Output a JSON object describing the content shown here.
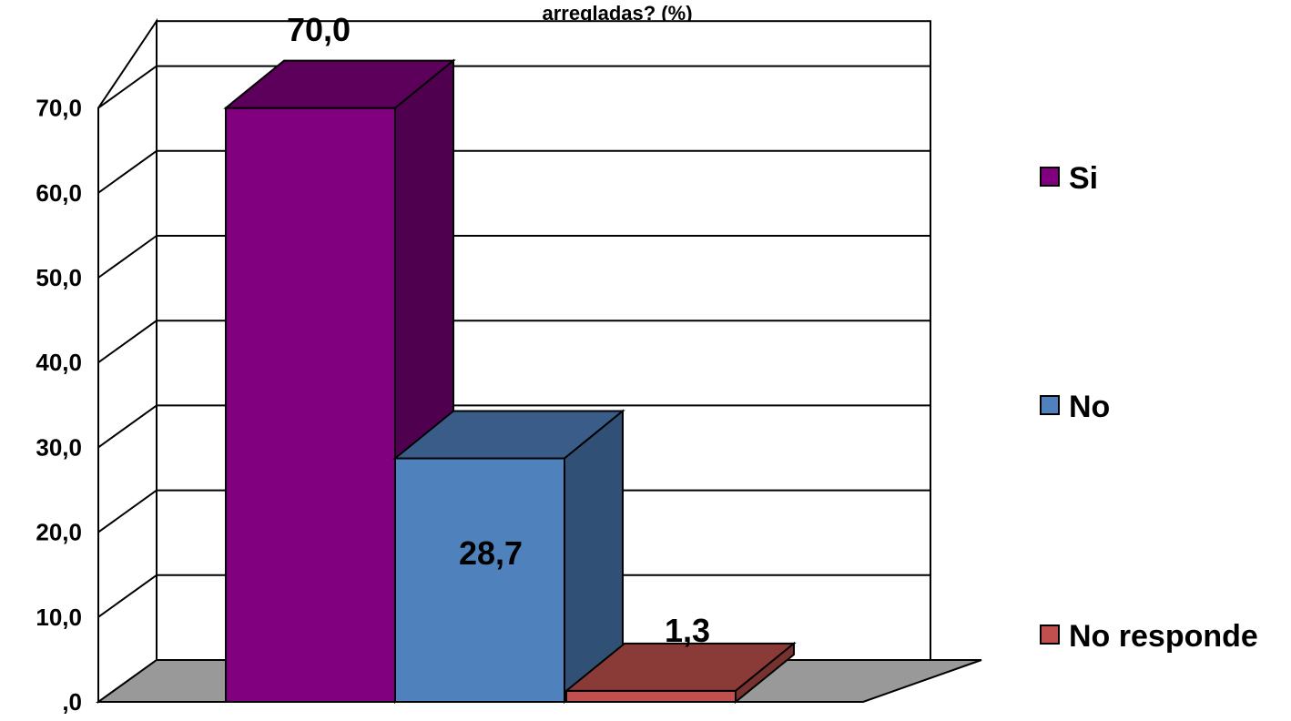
{
  "chart_data": {
    "type": "bar",
    "title": "arregladas?  (%)",
    "categories": [
      "Si",
      "No",
      "No responde"
    ],
    "values": [
      70.0,
      28.7,
      1.3
    ],
    "data_labels": [
      "70,0",
      "28,7",
      "1,3"
    ],
    "colors": [
      "#800080",
      "#4f81bd",
      "#c0504d"
    ],
    "ylim": [
      0,
      70
    ],
    "yticks": [
      ",0",
      "10,0",
      "20,0",
      "30,0",
      "40,0",
      "50,0",
      "60,0",
      "70,0"
    ],
    "grid": true,
    "three_d": true,
    "legend": {
      "position": "right",
      "entries": [
        "Si",
        "No",
        "No responde"
      ]
    }
  }
}
